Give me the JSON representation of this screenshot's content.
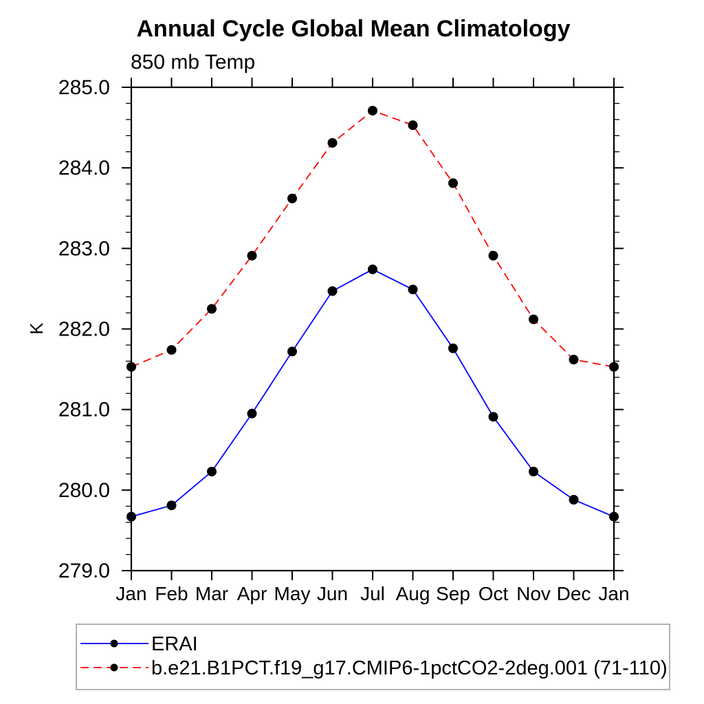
{
  "chart_data": {
    "type": "line",
    "title": "Annual Cycle Global Mean Climatology",
    "subtitle": "850 mb Temp",
    "ylabel": "K",
    "xlabel": "",
    "categories": [
      "Jan",
      "Feb",
      "Mar",
      "Apr",
      "May",
      "Jun",
      "Jul",
      "Aug",
      "Sep",
      "Oct",
      "Nov",
      "Dec",
      "Jan"
    ],
    "ylim": [
      279.0,
      285.0
    ],
    "y_major_step": 1.0,
    "y_minor_step": 0.2,
    "y_tick_decimals": 1,
    "grid": false,
    "axis_color": "#000000",
    "legend_position": "bottom-left",
    "legend_border_color": "#a9a9a9",
    "series": [
      {
        "name": "ERAI",
        "line_color": "#0000ff",
        "line_style": "solid",
        "marker": "filled-circle",
        "marker_color": "#000000",
        "values": [
          279.67,
          279.81,
          280.23,
          280.95,
          281.72,
          282.47,
          282.74,
          282.49,
          281.76,
          280.91,
          280.23,
          279.88,
          279.67
        ]
      },
      {
        "name": "b.e21.B1PCT.f19_g17.CMIP6-1pctCO2-2deg.001 (71-110)",
        "line_color": "#ff0000",
        "line_style": "dashed",
        "marker": "filled-circle",
        "marker_color": "#000000",
        "values": [
          281.53,
          281.74,
          282.25,
          282.91,
          283.62,
          284.31,
          284.71,
          284.53,
          283.81,
          282.91,
          282.12,
          281.62,
          281.53
        ]
      }
    ]
  }
}
